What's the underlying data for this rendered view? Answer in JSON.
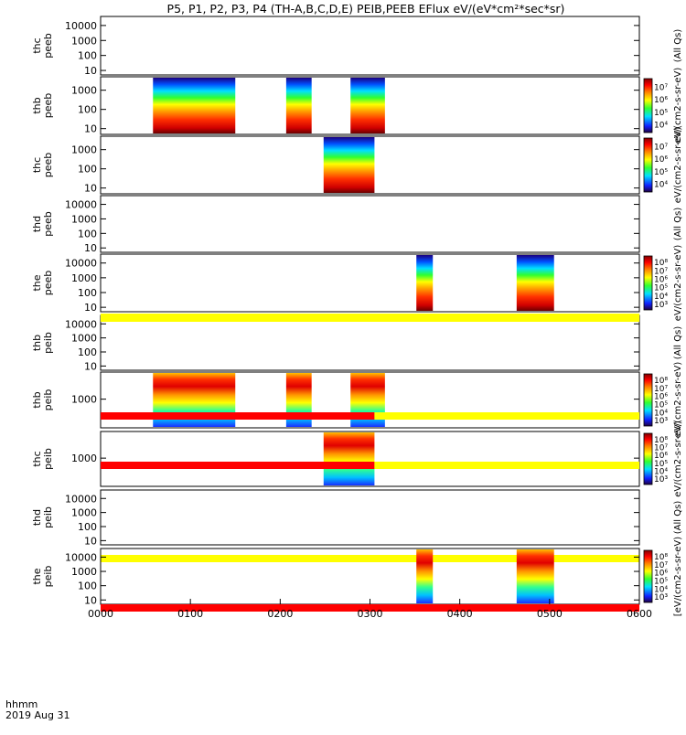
{
  "title": "P5, P1, P2, P3, P4 (TH-A,B,C,D,E) PEIB,PEEB EFlux eV/(eV*cm²*sec*sr)",
  "footer": {
    "label1": "hhmm",
    "label2": "2019 Aug 31"
  },
  "x_ticks": [
    "0000",
    "0100",
    "0200",
    "0300",
    "0400",
    "0500",
    "0600"
  ],
  "colors": {
    "flag_yellow": "#ffff00",
    "flag_red": "#ff0000",
    "axis": "#000000"
  },
  "chart_data": {
    "type": "heatmap",
    "x_unit": "hhmm",
    "xlim": [
      "00:00",
      "06:00"
    ],
    "panels": [
      {
        "id": "thc_peeb",
        "ylabel": [
          "thc",
          "peeb"
        ],
        "yscale": "log",
        "ylim": [
          5,
          40000
        ],
        "ytick_labels": [
          "10",
          "100",
          "1000",
          "10000"
        ],
        "colorbar": null,
        "flag": null,
        "intervals": []
      },
      {
        "id": "thb_peeb",
        "ylabel": [
          "thb",
          "peeb"
        ],
        "yscale": "log",
        "ylim": [
          5,
          5000
        ],
        "ytick_labels": [
          "10",
          "100",
          "1000"
        ],
        "colorbar": {
          "labels": [
            "10⁴",
            "10⁵",
            "10⁶",
            "10⁷"
          ]
        },
        "flag": null,
        "intervals": [
          [
            "00:35",
            "01:30"
          ],
          [
            "02:04",
            "02:21"
          ],
          [
            "02:47",
            "03:10"
          ]
        ]
      },
      {
        "id": "thc_peeb_2",
        "ylabel": [
          "thc",
          "peeb"
        ],
        "yscale": "log",
        "ylim": [
          5,
          5000
        ],
        "ytick_labels": [
          "10",
          "100",
          "1000"
        ],
        "colorbar": {
          "labels": [
            "10⁴",
            "10⁵",
            "10⁶",
            "10⁷"
          ]
        },
        "flag": null,
        "intervals": [
          [
            "02:29",
            "03:03"
          ]
        ]
      },
      {
        "id": "thd_peeb",
        "ylabel": [
          "thd",
          "peeb"
        ],
        "yscale": "log",
        "ylim": [
          5,
          40000
        ],
        "ytick_labels": [
          "10",
          "100",
          "1000",
          "10000"
        ],
        "colorbar": null,
        "flag": null,
        "intervals": []
      },
      {
        "id": "the_peeb",
        "ylabel": [
          "the",
          "peeb"
        ],
        "yscale": "log",
        "ylim": [
          5,
          40000
        ],
        "ytick_labels": [
          "10",
          "100",
          "1000",
          "10000"
        ],
        "colorbar": {
          "labels": [
            "10³",
            "10⁴",
            "10⁵",
            "10⁶",
            "10⁷",
            "10⁸"
          ]
        },
        "flag": null,
        "intervals": [
          [
            "03:31",
            "03:42"
          ],
          [
            "04:38",
            "05:03"
          ]
        ]
      },
      {
        "id": "thb_peib_1",
        "ylabel": [
          "thb",
          "peib"
        ],
        "yscale": "log",
        "ylim": [
          5,
          40000
        ],
        "ytick_labels": [
          "10",
          "100",
          "1000",
          "10000"
        ],
        "colorbar": null,
        "flag": "yellow",
        "intervals": []
      },
      {
        "id": "thb_peib",
        "ylabel": [
          "thb",
          "peib"
        ],
        "yscale": "log",
        "ylim": [
          150,
          6000
        ],
        "ytick_labels": [
          "1000"
        ],
        "colorbar": {
          "labels": [
            "10³",
            "10⁴",
            "10⁵",
            "10⁶",
            "10⁷",
            "10⁸"
          ]
        },
        "flag": "red-yellow",
        "intervals": [
          [
            "00:35",
            "01:30"
          ],
          [
            "02:04",
            "02:21"
          ],
          [
            "02:47",
            "03:10"
          ]
        ]
      },
      {
        "id": "thc_peib",
        "ylabel": [
          "thc",
          "peib"
        ],
        "yscale": "log",
        "ylim": [
          150,
          6000
        ],
        "ytick_labels": [
          "1000"
        ],
        "colorbar": {
          "labels": [
            "10³",
            "10⁴",
            "10⁵",
            "10⁶",
            "10⁷",
            "10⁸"
          ]
        },
        "flag": "red-yellow",
        "intervals": [
          [
            "02:29",
            "03:03"
          ]
        ]
      },
      {
        "id": "thd_peib",
        "ylabel": [
          "thd",
          "peib"
        ],
        "yscale": "log",
        "ylim": [
          5,
          40000
        ],
        "ytick_labels": [
          "10",
          "100",
          "1000",
          "10000"
        ],
        "colorbar": null,
        "flag": "yellow",
        "intervals": []
      },
      {
        "id": "the_peib",
        "ylabel": [
          "the",
          "peib"
        ],
        "yscale": "log",
        "ylim": [
          5,
          40000
        ],
        "ytick_labels": [
          "10",
          "100",
          "1000",
          "10000"
        ],
        "colorbar": {
          "labels": [
            "10³",
            "10⁴",
            "10⁵",
            "10⁶",
            "10⁷",
            "10⁸"
          ]
        },
        "flag": "red",
        "intervals": [
          [
            "03:31",
            "03:42"
          ],
          [
            "04:38",
            "05:03"
          ]
        ]
      }
    ],
    "colorbar_titles": [
      "(All Qs)",
      "eV/(cm2-s-sr-eV)",
      "eV/(cm2-s-sr-eV)",
      "(All Qs)",
      "eV/(cm2-s-sr-eV)",
      "(All Qs)",
      "eV/(cm2-s-sr-eV)",
      "eV/(cm2-s-sr-eV)",
      "(All Qs)",
      "[eV/(cm2-s-sr-eV)"
    ]
  }
}
